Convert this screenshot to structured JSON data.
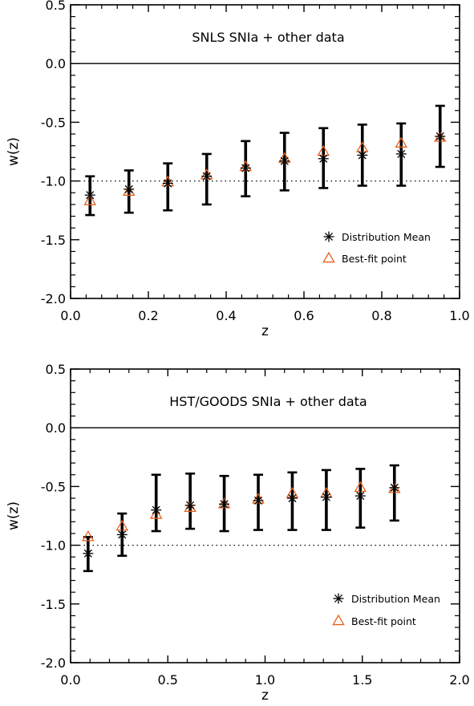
{
  "chart_data": [
    {
      "type": "scatter",
      "annotation": "SNLS SNIa + other data",
      "xlabel": "z",
      "ylabel": "w(z)",
      "xlim": [
        0.0,
        1.0
      ],
      "ylim": [
        -2.0,
        0.5
      ],
      "xticks": [
        "0.0",
        "0.2",
        "0.4",
        "0.6",
        "0.8",
        "1.0"
      ],
      "yticks": [
        "-2.0",
        "-1.5",
        "-1.0",
        "-0.5",
        "0.0",
        "0.5"
      ],
      "reference_lines": {
        "solid": 0.0,
        "dotted": -1.0
      },
      "legend_position": "bottom-right",
      "series": [
        {
          "name": "Distribution Mean",
          "marker": "asterisk",
          "color": "#000000",
          "x": [
            0.05,
            0.15,
            0.25,
            0.35,
            0.45,
            0.55,
            0.65,
            0.75,
            0.85,
            0.95
          ],
          "y": [
            -1.12,
            -1.07,
            -1.02,
            -0.96,
            -0.89,
            -0.83,
            -0.81,
            -0.78,
            -0.77,
            -0.62
          ],
          "y_low": [
            -1.29,
            -1.27,
            -1.25,
            -1.2,
            -1.13,
            -1.08,
            -1.06,
            -1.04,
            -1.04,
            -0.88
          ],
          "y_high": [
            -0.96,
            -0.91,
            -0.85,
            -0.77,
            -0.66,
            -0.59,
            -0.55,
            -0.52,
            -0.51,
            -0.36
          ]
        },
        {
          "name": "Best-fit point",
          "marker": "triangle",
          "color": "#e8601c",
          "x": [
            0.05,
            0.15,
            0.25,
            0.35,
            0.45,
            0.55,
            0.65,
            0.75,
            0.85,
            0.95
          ],
          "y": [
            -1.17,
            -1.09,
            -1.01,
            -0.95,
            -0.88,
            -0.81,
            -0.75,
            -0.72,
            -0.68,
            -0.63
          ]
        }
      ]
    },
    {
      "type": "scatter",
      "annotation": "HST/GOODS SNIa + other data",
      "xlabel": "z",
      "ylabel": "w(z)",
      "xlim": [
        0.0,
        2.0
      ],
      "ylim": [
        -2.0,
        0.5
      ],
      "xticks": [
        "0.0",
        "0.5",
        "1.0",
        "1.5",
        "2.0"
      ],
      "yticks": [
        "-2.0",
        "-1.5",
        "-1.0",
        "-0.5",
        "0.0",
        "0.5"
      ],
      "reference_lines": {
        "solid": 0.0,
        "dotted": -1.0
      },
      "legend_position": "bottom-right",
      "series": [
        {
          "name": "Distribution Mean",
          "marker": "asterisk",
          "color": "#000000",
          "x": [
            0.09,
            0.265,
            0.44,
            0.615,
            0.79,
            0.965,
            1.14,
            1.315,
            1.49,
            1.665
          ],
          "y": [
            -1.07,
            -0.91,
            -0.7,
            -0.66,
            -0.65,
            -0.62,
            -0.6,
            -0.59,
            -0.58,
            -0.51
          ],
          "y_low": [
            -1.22,
            -1.09,
            -0.88,
            -0.86,
            -0.88,
            -0.87,
            -0.87,
            -0.87,
            -0.85,
            -0.79
          ],
          "y_high": [
            -0.93,
            -0.73,
            -0.4,
            -0.39,
            -0.41,
            -0.4,
            -0.38,
            -0.36,
            -0.35,
            -0.32
          ]
        },
        {
          "name": "Best-fit point",
          "marker": "triangle",
          "color": "#e8601c",
          "x": [
            0.09,
            0.265,
            0.44,
            0.615,
            0.79,
            0.965,
            1.14,
            1.315,
            1.49,
            1.665
          ],
          "y": [
            -0.93,
            -0.84,
            -0.74,
            -0.68,
            -0.65,
            -0.61,
            -0.56,
            -0.56,
            -0.51,
            -0.52
          ]
        }
      ]
    }
  ]
}
